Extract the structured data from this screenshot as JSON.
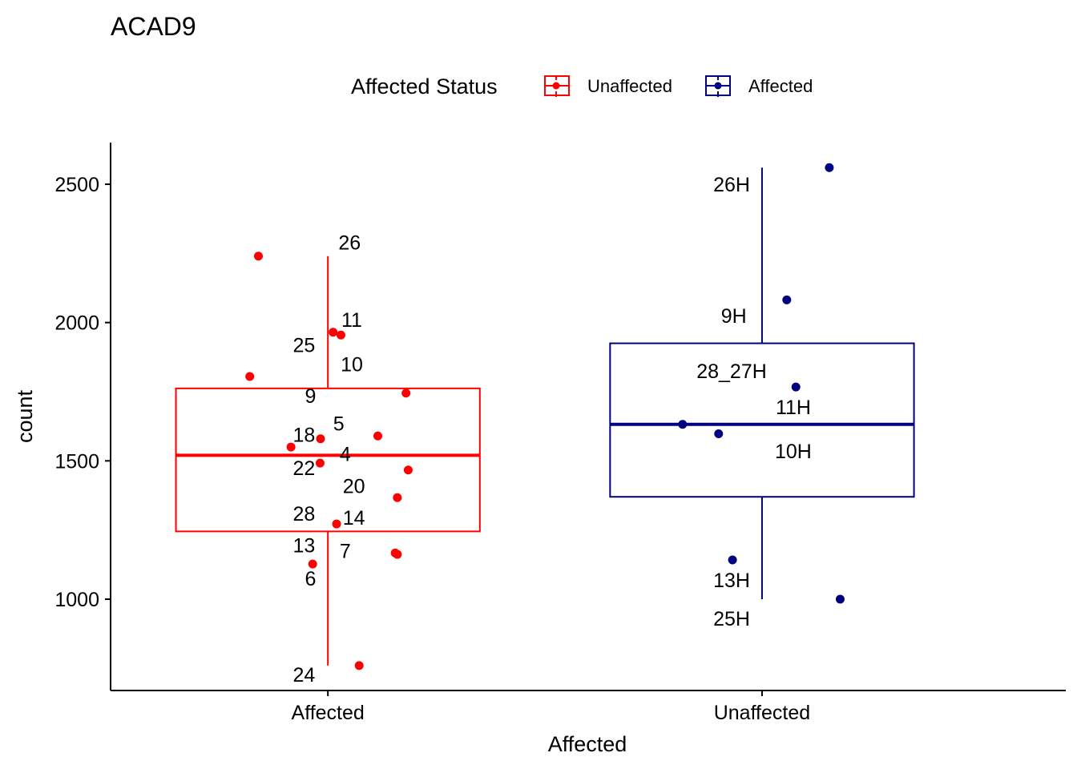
{
  "chart_data": {
    "type": "boxplot",
    "title": "ACAD9",
    "xlabel": "Affected",
    "ylabel": "count",
    "ylim": [
      700,
      2650
    ],
    "yticks": [
      1000,
      1500,
      2000,
      2500
    ],
    "categories": [
      "Affected",
      "Unaffected"
    ],
    "legend": {
      "title": "Affected Status",
      "position": "top",
      "entries": [
        {
          "label": "Unaffected",
          "color": "#ff0000"
        },
        {
          "label": "Affected",
          "color": "#000080"
        }
      ]
    },
    "groups": [
      {
        "category": "Affected",
        "color": "#ff0000",
        "box": {
          "whisker_low": 760,
          "q1": 1245,
          "median": 1520,
          "q3": 1762,
          "whisker_high": 2240
        },
        "points": [
          {
            "label": "26",
            "x_offset": -0.16,
            "y": 2240,
            "label_dx": 0.05,
            "label_y": 2290
          },
          {
            "label": "11",
            "x_offset": 0.012,
            "y": 1965,
            "label_dx": 0.055,
            "label_y": 2010
          },
          {
            "label": "10",
            "x_offset": 0.03,
            "y": 1955,
            "label_dx": 0.055,
            "label_y": 1850
          },
          {
            "label": "25",
            "x_offset": -0.18,
            "y": 1805,
            "label_dx": -0.055,
            "label_y": 1920
          },
          {
            "label": "9",
            "x_offset": 0.18,
            "y": 1745,
            "label_dx": -0.04,
            "label_y": 1735
          },
          {
            "label": "5",
            "x_offset": 0.115,
            "y": 1590,
            "label_dx": 0.025,
            "label_y": 1635
          },
          {
            "label": "18",
            "x_offset": -0.017,
            "y": 1580,
            "label_dx": -0.055,
            "label_y": 1595
          },
          {
            "label": "4",
            "x_offset": -0.085,
            "y": 1550,
            "label_dx": 0.04,
            "label_y": 1525
          },
          {
            "label": "22",
            "x_offset": -0.018,
            "y": 1492,
            "label_dx": -0.055,
            "label_y": 1475
          },
          {
            "label": "20",
            "x_offset": 0.185,
            "y": 1467,
            "label_dx": 0.06,
            "label_y": 1410
          },
          {
            "label": "28",
            "x_offset": 0.16,
            "y": 1367,
            "label_dx": -0.055,
            "label_y": 1310
          },
          {
            "label": "14",
            "x_offset": 0.02,
            "y": 1272,
            "label_dx": 0.06,
            "label_y": 1295
          },
          {
            "label": "13",
            "x_offset": 0.155,
            "y": 1167,
            "label_dx": -0.055,
            "label_y": 1195
          },
          {
            "label": "7",
            "x_offset": 0.16,
            "y": 1162,
            "label_dx": 0.04,
            "label_y": 1175
          },
          {
            "label": "6",
            "x_offset": -0.035,
            "y": 1127,
            "label_dx": -0.04,
            "label_y": 1075
          },
          {
            "label": "24",
            "x_offset": 0.072,
            "y": 760,
            "label_dx": -0.055,
            "label_y": 728
          }
        ]
      },
      {
        "category": "Unaffected",
        "color": "#000080",
        "box": {
          "whisker_low": 1000,
          "q1": 1370,
          "median": 1632,
          "q3": 1925,
          "whisker_high": 2560
        },
        "points": [
          {
            "label": "26H",
            "x_offset": 0.155,
            "y": 2560,
            "label_dx": -0.07,
            "label_y": 2500
          },
          {
            "label": "9H",
            "x_offset": 0.057,
            "y": 2082,
            "label_dx": -0.065,
            "label_y": 2025
          },
          {
            "label": "28_27H",
            "x_offset": 0.078,
            "y": 1767,
            "label_dx": -0.07,
            "label_y": 1825
          },
          {
            "label": "11H",
            "x_offset": -0.183,
            "y": 1632,
            "label_dx": 0.072,
            "label_y": 1695
          },
          {
            "label": "10H",
            "x_offset": -0.1,
            "y": 1598,
            "label_dx": 0.072,
            "label_y": 1535
          },
          {
            "label": "13H",
            "x_offset": -0.068,
            "y": 1142,
            "label_dx": -0.07,
            "label_y": 1070
          },
          {
            "label": "25H",
            "x_offset": 0.18,
            "y": 1000,
            "label_dx": -0.07,
            "label_y": 930
          }
        ]
      }
    ]
  }
}
